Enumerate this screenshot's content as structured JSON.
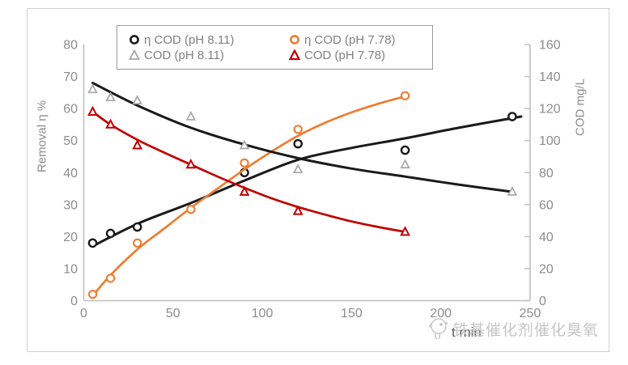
{
  "watermark": {
    "text": "铁基催化剂催化臭氧",
    "logo": "chick-doodle-icon"
  },
  "chart_data": {
    "type": "scatter",
    "title": "",
    "xlabel": "t min",
    "ylabel_left": "Removal η %",
    "ylabel_right": "COD mg/L",
    "xlim": [
      0,
      250
    ],
    "ylim_left": [
      0,
      80
    ],
    "ylim_right": [
      0,
      160
    ],
    "x_ticks": [
      0,
      50,
      100,
      150,
      200,
      250
    ],
    "left_ticks": [
      0,
      10,
      20,
      30,
      40,
      50,
      60,
      70,
      80
    ],
    "right_ticks": [
      0,
      20,
      40,
      60,
      80,
      100,
      120,
      140,
      160
    ],
    "grid": false,
    "legend_position": "top",
    "colors": {
      "black": "#1a1a1a",
      "orange": "#ED7D31",
      "gray": "#A6A6A6",
      "red": "#C00000",
      "axis_line": "#bfbfbf",
      "tick_label": "#8c8c8c"
    },
    "series": [
      {
        "name": "η COD (pH 8.11)",
        "marker": "circle",
        "color": "#1a1a1a",
        "axis": "left",
        "x": [
          5,
          15,
          30,
          90,
          120,
          180,
          240
        ],
        "y": [
          18,
          21,
          23,
          40,
          49,
          47,
          57.5
        ],
        "trend": {
          "color": "#1a1a1a",
          "x": [
            5,
            30,
            60,
            90,
            120,
            150,
            180,
            210,
            245
          ],
          "y": [
            17,
            24,
            30.5,
            37.5,
            44,
            47.7,
            50.7,
            54,
            57.5
          ]
        }
      },
      {
        "name": "η COD (pH 7.78)",
        "marker": "circle",
        "color": "#ED7D31",
        "axis": "left",
        "x": [
          5,
          15,
          30,
          60,
          90,
          120,
          180
        ],
        "y": [
          2,
          7,
          18,
          28.5,
          43,
          53.5,
          64
        ],
        "trend": {
          "color": "#ED7D31",
          "x": [
            5,
            15,
            30,
            45,
            60,
            75,
            90,
            105,
            120,
            135,
            150,
            165,
            180
          ],
          "y": [
            1.5,
            8,
            16,
            22.5,
            29,
            35,
            41,
            46.5,
            51.5,
            55.5,
            58.8,
            61.5,
            63.8
          ]
        }
      },
      {
        "name": "COD (pH 8.11)",
        "marker": "triangle",
        "color": "#A6A6A6",
        "axis": "right",
        "x": [
          5,
          15,
          30,
          60,
          90,
          120,
          180,
          240
        ],
        "y": [
          132,
          127,
          125,
          115,
          97,
          82,
          85,
          68
        ],
        "trend": {
          "color": "#1a1a1a",
          "x": [
            5,
            30,
            60,
            90,
            120,
            150,
            180,
            210,
            240
          ],
          "y": [
            136,
            122,
            108,
            97.5,
            89,
            82.5,
            77.5,
            72.5,
            68
          ]
        }
      },
      {
        "name": "COD (pH 7.78)",
        "marker": "triangle",
        "color": "#C00000",
        "axis": "right",
        "x": [
          5,
          15,
          30,
          60,
          90,
          120,
          180
        ],
        "y": [
          118,
          110,
          97,
          85,
          68,
          56,
          43
        ],
        "trend": {
          "color": "#C00000",
          "x": [
            5,
            15,
            30,
            45,
            60,
            75,
            90,
            105,
            120,
            135,
            150,
            165,
            180
          ],
          "y": [
            118,
            110,
            100.5,
            92.5,
            85,
            77.5,
            70.5,
            64,
            58.5,
            53.8,
            49.5,
            46,
            43
          ]
        }
      }
    ]
  }
}
